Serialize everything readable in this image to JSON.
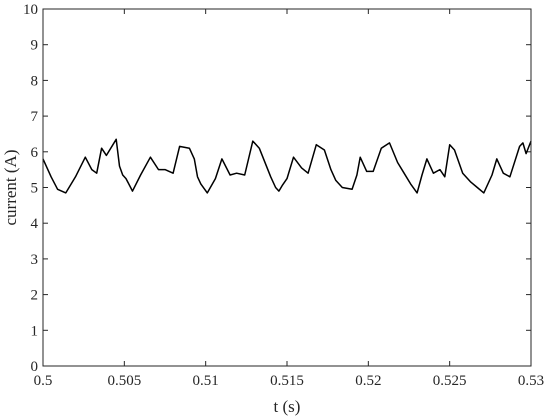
{
  "chart_data": {
    "type": "line",
    "title": "",
    "xlabel": "t (s)",
    "ylabel": "current (A)",
    "xlim": [
      0.5,
      0.53
    ],
    "ylim": [
      0,
      10
    ],
    "xticks": [
      0.5,
      0.505,
      0.51,
      0.515,
      0.52,
      0.525,
      0.53
    ],
    "xtick_labels": [
      "0.5",
      "0.505",
      "0.51",
      "0.515",
      "0.52",
      "0.525",
      "0.53"
    ],
    "yticks": [
      0,
      1,
      2,
      3,
      4,
      5,
      6,
      7,
      8,
      9,
      10
    ],
    "ytick_labels": [
      "0",
      "1",
      "2",
      "3",
      "4",
      "5",
      "6",
      "7",
      "8",
      "9",
      "10"
    ],
    "grid": false,
    "line_color": "#000000",
    "series": [
      {
        "x": [
          0.5,
          0.5005,
          0.5009,
          0.5014,
          0.502,
          0.5026,
          0.503,
          0.5033,
          0.5036,
          0.5039,
          0.5045,
          0.5047,
          0.5049,
          0.5051,
          0.5055,
          0.506,
          0.5066,
          0.5071,
          0.5075,
          0.508,
          0.5084,
          0.509,
          0.5093,
          0.5095,
          0.5097,
          0.5101,
          0.5106,
          0.511,
          0.5115,
          0.5119,
          0.5124,
          0.5129,
          0.5133,
          0.514,
          0.5143,
          0.5145,
          0.5147,
          0.515,
          0.5154,
          0.5159,
          0.5163,
          0.5168,
          0.5173,
          0.5177,
          0.518,
          0.5184,
          0.519,
          0.5193,
          0.5195,
          0.5199,
          0.5203,
          0.5208,
          0.5213,
          0.5218,
          0.5222,
          0.5226,
          0.523,
          0.5233,
          0.5236,
          0.524,
          0.5244,
          0.5247,
          0.525,
          0.5253,
          0.5258,
          0.5263,
          0.5267,
          0.5271,
          0.5276,
          0.5279,
          0.5283,
          0.5287,
          0.5293,
          0.5295,
          0.5297,
          0.53
        ],
        "y": [
          5.8,
          5.3,
          4.95,
          4.85,
          5.3,
          5.85,
          5.5,
          5.4,
          6.1,
          5.9,
          6.35,
          5.6,
          5.35,
          5.25,
          4.9,
          5.35,
          5.85,
          5.5,
          5.5,
          5.4,
          6.15,
          6.1,
          5.8,
          5.3,
          5.1,
          4.85,
          5.25,
          5.8,
          5.35,
          5.4,
          5.35,
          6.3,
          6.1,
          5.3,
          5.0,
          4.9,
          5.05,
          5.25,
          5.85,
          5.55,
          5.4,
          6.2,
          6.05,
          5.5,
          5.2,
          5.0,
          4.95,
          5.35,
          5.85,
          5.45,
          5.45,
          6.1,
          6.25,
          5.7,
          5.4,
          5.1,
          4.85,
          5.35,
          5.8,
          5.4,
          5.5,
          5.3,
          6.2,
          6.05,
          5.4,
          5.15,
          5.0,
          4.85,
          5.35,
          5.8,
          5.4,
          5.3,
          6.15,
          6.25,
          5.95,
          6.3
        ]
      }
    ]
  }
}
